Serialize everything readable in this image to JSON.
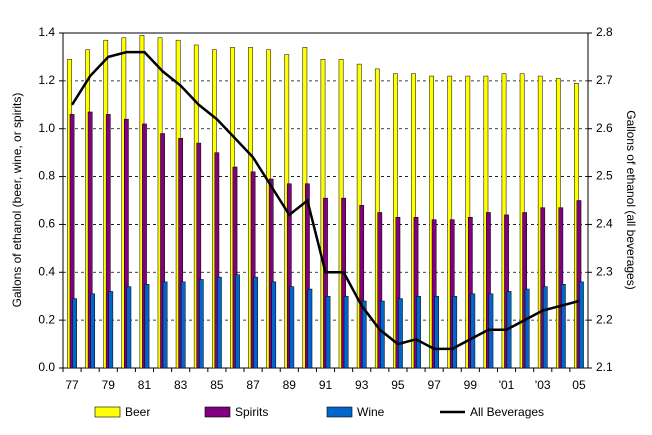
{
  "chart_data": {
    "type": "bar",
    "y_label": "Gallons of ethanol (beer, wine, or spirits)",
    "y2_label": "Gallons of ethanol (all beverages)",
    "categories": [
      "77",
      null,
      "79",
      null,
      "81",
      null,
      "83",
      null,
      "85",
      null,
      "87",
      null,
      "89",
      null,
      "91",
      null,
      "93",
      null,
      "95",
      null,
      "97",
      null,
      "99",
      null,
      "'01",
      null,
      "'03",
      null,
      "05"
    ],
    "series": [
      {
        "name": "Beer",
        "type": "bar",
        "color": "#ffff00",
        "values": [
          1.29,
          1.33,
          1.37,
          1.38,
          1.39,
          1.38,
          1.37,
          1.35,
          1.33,
          1.34,
          1.34,
          1.33,
          1.31,
          1.34,
          1.29,
          1.29,
          1.27,
          1.25,
          1.23,
          1.23,
          1.22,
          1.22,
          1.22,
          1.22,
          1.23,
          1.23,
          1.22,
          1.21,
          1.19
        ]
      },
      {
        "name": "Spirits",
        "type": "bar",
        "color": "#800080",
        "values": [
          1.06,
          1.07,
          1.06,
          1.04,
          1.02,
          0.98,
          0.96,
          0.94,
          0.9,
          0.84,
          0.82,
          0.79,
          0.77,
          0.77,
          0.71,
          0.71,
          0.68,
          0.65,
          0.63,
          0.63,
          0.62,
          0.62,
          0.63,
          0.65,
          0.64,
          0.65,
          0.67,
          0.67,
          0.7
        ]
      },
      {
        "name": "Wine",
        "type": "bar",
        "color": "#0066cc",
        "values": [
          0.29,
          0.31,
          0.32,
          0.34,
          0.35,
          0.36,
          0.36,
          0.37,
          0.38,
          0.39,
          0.38,
          0.36,
          0.34,
          0.33,
          0.3,
          0.3,
          0.28,
          0.28,
          0.29,
          0.3,
          0.3,
          0.3,
          0.31,
          0.31,
          0.32,
          0.33,
          0.34,
          0.35,
          0.36
        ]
      },
      {
        "name": "All Beverages",
        "type": "line",
        "axis": "y2",
        "color": "#000000",
        "values": [
          2.65,
          2.71,
          2.75,
          2.76,
          2.76,
          2.72,
          2.69,
          2.65,
          2.62,
          2.58,
          2.54,
          2.48,
          2.42,
          2.45,
          2.3,
          2.3,
          2.23,
          2.18,
          2.15,
          2.16,
          2.14,
          2.14,
          2.16,
          2.18,
          2.18,
          2.2,
          2.22,
          2.23,
          2.24
        ]
      }
    ],
    "ylim": [
      0,
      1.4
    ],
    "yticks": [
      {
        "value": 0,
        "label": "0.0"
      },
      0.2,
      0.4,
      0.6,
      0.8,
      {
        "value": 1,
        "label": "1.0"
      },
      1.2,
      1.4
    ],
    "y2lim": [
      2.1,
      2.8
    ],
    "y2ticks": [
      2.1,
      2.2,
      2.3,
      2.4,
      2.5,
      2.6,
      2.7,
      2.8
    ],
    "grid": true,
    "legend": "bottom"
  }
}
